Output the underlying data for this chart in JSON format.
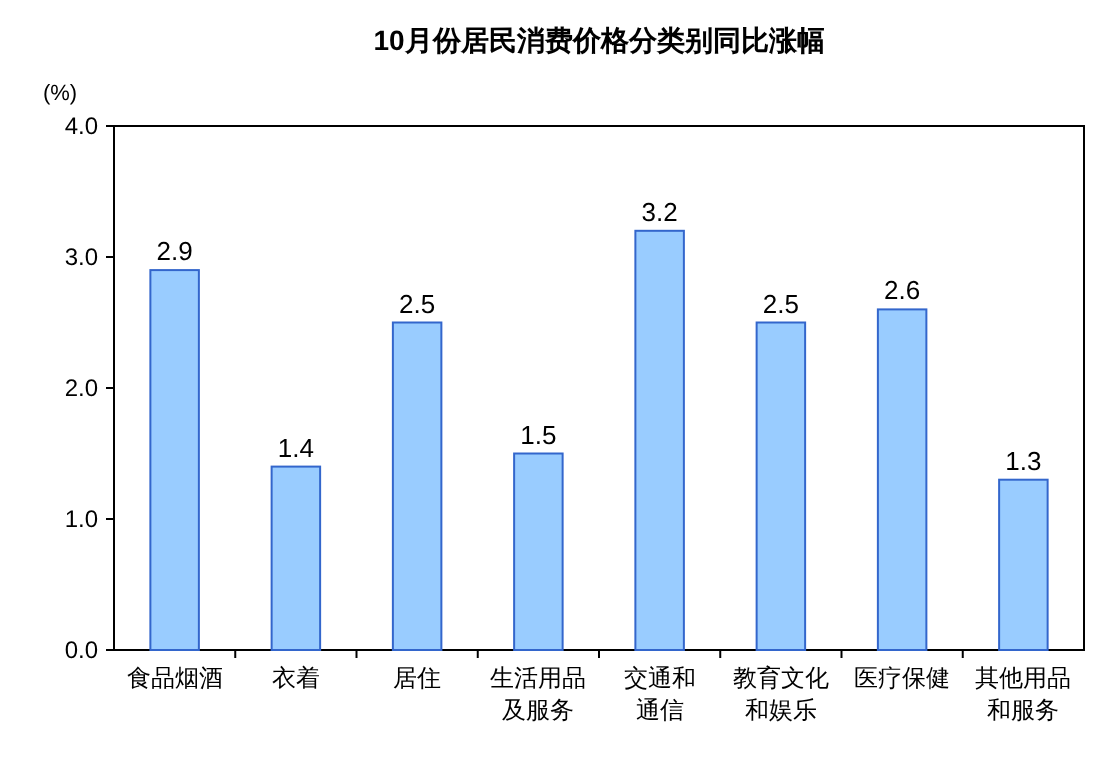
{
  "chart_data": {
    "type": "bar",
    "title": "10月份居民消费价格分类别同比涨幅",
    "ylabel": "(%)",
    "categories": [
      "食品烟酒",
      "衣着",
      "居住",
      "生活用品及服务",
      "交通和通信",
      "教育文化和娱乐",
      "医疗保健",
      "其他用品和服务"
    ],
    "values": [
      2.9,
      1.4,
      2.5,
      1.5,
      3.2,
      2.5,
      2.6,
      1.3
    ],
    "color": "#99ccff",
    "ylim": [
      0,
      4
    ],
    "yticks": [
      {
        "value": 0,
        "label": "0.0"
      },
      {
        "value": 1,
        "label": "1.0"
      },
      {
        "value": 2,
        "label": "2.0"
      },
      {
        "value": 3,
        "label": "3.0"
      },
      {
        "value": 4,
        "label": "4.0"
      }
    ],
    "data_labels": true
  }
}
